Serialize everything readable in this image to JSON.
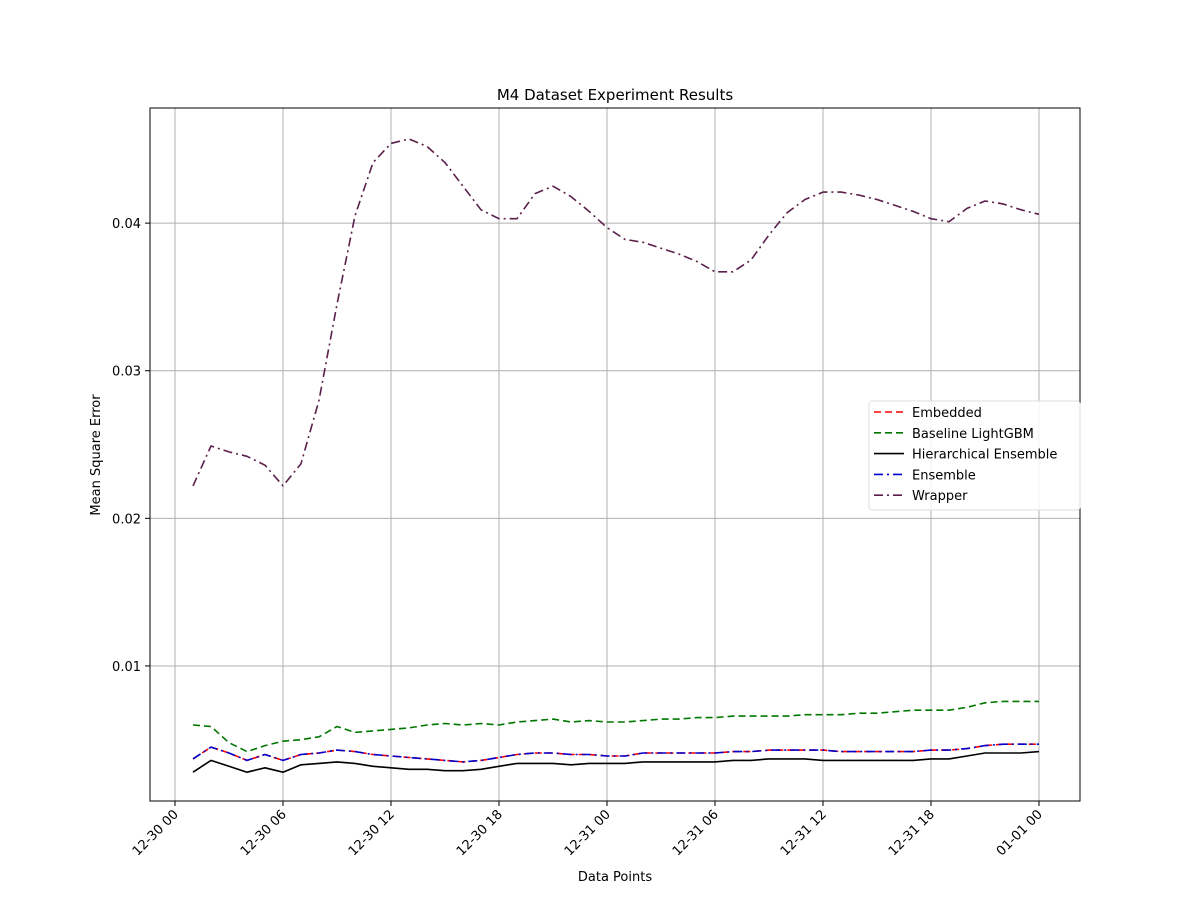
{
  "chart_data": {
    "type": "line",
    "title": "M4 Dataset Experiment Results",
    "xlabel": "Data Points",
    "ylabel": "Mean Square Error",
    "x_axis_type": "datetime-hourly",
    "x": [
      "12-30 01",
      "12-30 02",
      "12-30 03",
      "12-30 04",
      "12-30 05",
      "12-30 06",
      "12-30 07",
      "12-30 08",
      "12-30 09",
      "12-30 10",
      "12-30 11",
      "12-30 12",
      "12-30 13",
      "12-30 14",
      "12-30 15",
      "12-30 16",
      "12-30 17",
      "12-30 18",
      "12-30 19",
      "12-30 20",
      "12-30 21",
      "12-30 22",
      "12-30 23",
      "12-31 00",
      "12-31 01",
      "12-31 02",
      "12-31 03",
      "12-31 04",
      "12-31 05",
      "12-31 06",
      "12-31 07",
      "12-31 08",
      "12-31 09",
      "12-31 10",
      "12-31 11",
      "12-31 12",
      "12-31 13",
      "12-31 14",
      "12-31 15",
      "12-31 16",
      "12-31 17",
      "12-31 18",
      "12-31 19",
      "12-31 20",
      "12-31 21",
      "12-31 22",
      "12-31 23",
      "01-01 00"
    ],
    "xticks": [
      "12-30 00",
      "12-30 06",
      "12-30 12",
      "12-30 18",
      "12-31 00",
      "12-31 06",
      "12-31 12",
      "12-31 18",
      "01-01 00"
    ],
    "yticks": [
      "0.01",
      "0.02",
      "0.03",
      "0.04"
    ],
    "ylim": [
      0.00085,
      0.0478
    ],
    "grid": true,
    "legend_position": "center-right",
    "series": [
      {
        "name": "Embedded",
        "color": "#ff0000",
        "style": "dashed",
        "values": [
          0.0037,
          0.0045,
          0.0041,
          0.0036,
          0.004,
          0.0036,
          0.004,
          0.0041,
          0.0043,
          0.0042,
          0.004,
          0.0039,
          0.0038,
          0.0037,
          0.0036,
          0.0035,
          0.0036,
          0.0038,
          0.004,
          0.0041,
          0.0041,
          0.004,
          0.004,
          0.0039,
          0.0039,
          0.0041,
          0.0041,
          0.0041,
          0.0041,
          0.0041,
          0.0042,
          0.0042,
          0.0043,
          0.0043,
          0.0043,
          0.0043,
          0.0042,
          0.0042,
          0.0042,
          0.0042,
          0.0042,
          0.0043,
          0.0043,
          0.0044,
          0.0046,
          0.0047,
          0.0047,
          0.0047
        ]
      },
      {
        "name": "Baseline LightGBM",
        "color": "#007700",
        "style": "dashed",
        "values": [
          0.006,
          0.0059,
          0.0048,
          0.0042,
          0.0046,
          0.0049,
          0.005,
          0.0052,
          0.0059,
          0.0055,
          0.0056,
          0.0057,
          0.0058,
          0.006,
          0.0061,
          0.006,
          0.0061,
          0.006,
          0.0062,
          0.0063,
          0.0064,
          0.0062,
          0.0063,
          0.0062,
          0.0062,
          0.0063,
          0.0064,
          0.0064,
          0.0065,
          0.0065,
          0.0066,
          0.0066,
          0.0066,
          0.0066,
          0.0067,
          0.0067,
          0.0067,
          0.0068,
          0.0068,
          0.0069,
          0.007,
          0.007,
          0.007,
          0.0072,
          0.0075,
          0.0076,
          0.0076,
          0.0076
        ]
      },
      {
        "name": "Hierarchical Ensemble",
        "color": "#000000",
        "style": "solid",
        "values": [
          0.0028,
          0.0036,
          0.0032,
          0.0028,
          0.0031,
          0.0028,
          0.0033,
          0.0034,
          0.0035,
          0.0034,
          0.0032,
          0.0031,
          0.003,
          0.003,
          0.0029,
          0.0029,
          0.003,
          0.0032,
          0.0034,
          0.0034,
          0.0034,
          0.0033,
          0.0034,
          0.0034,
          0.0034,
          0.0035,
          0.0035,
          0.0035,
          0.0035,
          0.0035,
          0.0036,
          0.0036,
          0.0037,
          0.0037,
          0.0037,
          0.0036,
          0.0036,
          0.0036,
          0.0036,
          0.0036,
          0.0036,
          0.0037,
          0.0037,
          0.0039,
          0.0041,
          0.0041,
          0.0041,
          0.0042
        ]
      },
      {
        "name": "Ensemble",
        "color": "#0000cc",
        "style": "dashdot",
        "values": [
          0.0037,
          0.0045,
          0.0041,
          0.0036,
          0.004,
          0.0036,
          0.004,
          0.0041,
          0.0043,
          0.0042,
          0.004,
          0.0039,
          0.0038,
          0.0037,
          0.0036,
          0.0035,
          0.0036,
          0.0038,
          0.004,
          0.0041,
          0.0041,
          0.004,
          0.004,
          0.0039,
          0.0039,
          0.0041,
          0.0041,
          0.0041,
          0.0041,
          0.0041,
          0.0042,
          0.0042,
          0.0043,
          0.0043,
          0.0043,
          0.0043,
          0.0042,
          0.0042,
          0.0042,
          0.0042,
          0.0042,
          0.0043,
          0.0043,
          0.0044,
          0.0046,
          0.0047,
          0.0047,
          0.0047
        ]
      },
      {
        "name": "Wrapper",
        "color": "#5a1f4a",
        "style": "dashdot",
        "values": [
          0.0222,
          0.0249,
          0.0245,
          0.0242,
          0.0236,
          0.0222,
          0.0237,
          0.028,
          0.0345,
          0.0405,
          0.0441,
          0.0454,
          0.0457,
          0.0452,
          0.0441,
          0.0425,
          0.0409,
          0.0403,
          0.0403,
          0.042,
          0.0425,
          0.0418,
          0.0408,
          0.0397,
          0.0389,
          0.0387,
          0.0383,
          0.0379,
          0.0374,
          0.0367,
          0.0367,
          0.0375,
          0.0392,
          0.0407,
          0.0416,
          0.0421,
          0.0421,
          0.0419,
          0.0416,
          0.0412,
          0.0408,
          0.0403,
          0.0401,
          0.041,
          0.0415,
          0.0413,
          0.0409,
          0.0406
        ]
      }
    ]
  }
}
